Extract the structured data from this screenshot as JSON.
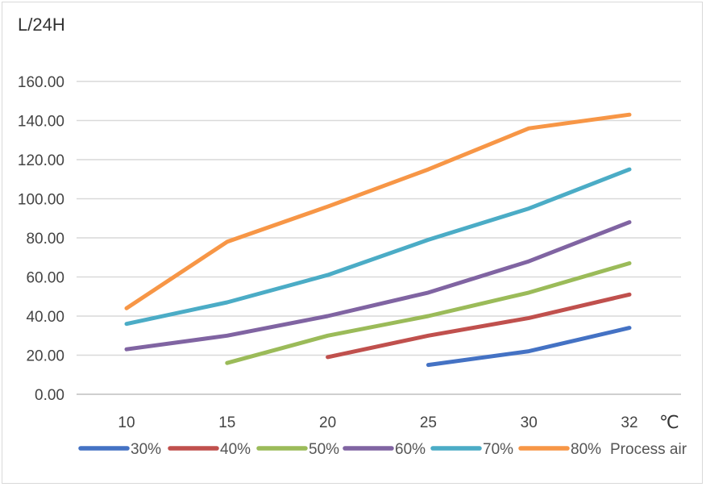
{
  "chart_data": {
    "type": "line",
    "ylabel": "L/24H",
    "xunit": "℃",
    "legend_title": "Process air",
    "legend_position": "bottom",
    "grid": true,
    "ylim": [
      0,
      160
    ],
    "y_ticks": [
      "0.00",
      "20.00",
      "40.00",
      "60.00",
      "80.00",
      "100.00",
      "120.00",
      "140.00",
      "160.00"
    ],
    "categories": [
      "10",
      "15",
      "20",
      "25",
      "30",
      "32"
    ],
    "series": [
      {
        "name": "30%",
        "color": "#4472c4",
        "values": [
          null,
          null,
          null,
          15,
          22,
          34
        ]
      },
      {
        "name": "40%",
        "color": "#c0504d",
        "values": [
          null,
          null,
          19,
          30,
          39,
          51
        ]
      },
      {
        "name": "50%",
        "color": "#9bbb59",
        "values": [
          null,
          16,
          30,
          40,
          52,
          67
        ]
      },
      {
        "name": "60%",
        "color": "#8064a2",
        "values": [
          23,
          30,
          40,
          52,
          68,
          88
        ]
      },
      {
        "name": "70%",
        "color": "#4bacc6",
        "values": [
          36,
          47,
          61,
          79,
          95,
          115
        ]
      },
      {
        "name": "80%",
        "color": "#f79646",
        "values": [
          44,
          78,
          96,
          115,
          136,
          143
        ]
      }
    ]
  }
}
